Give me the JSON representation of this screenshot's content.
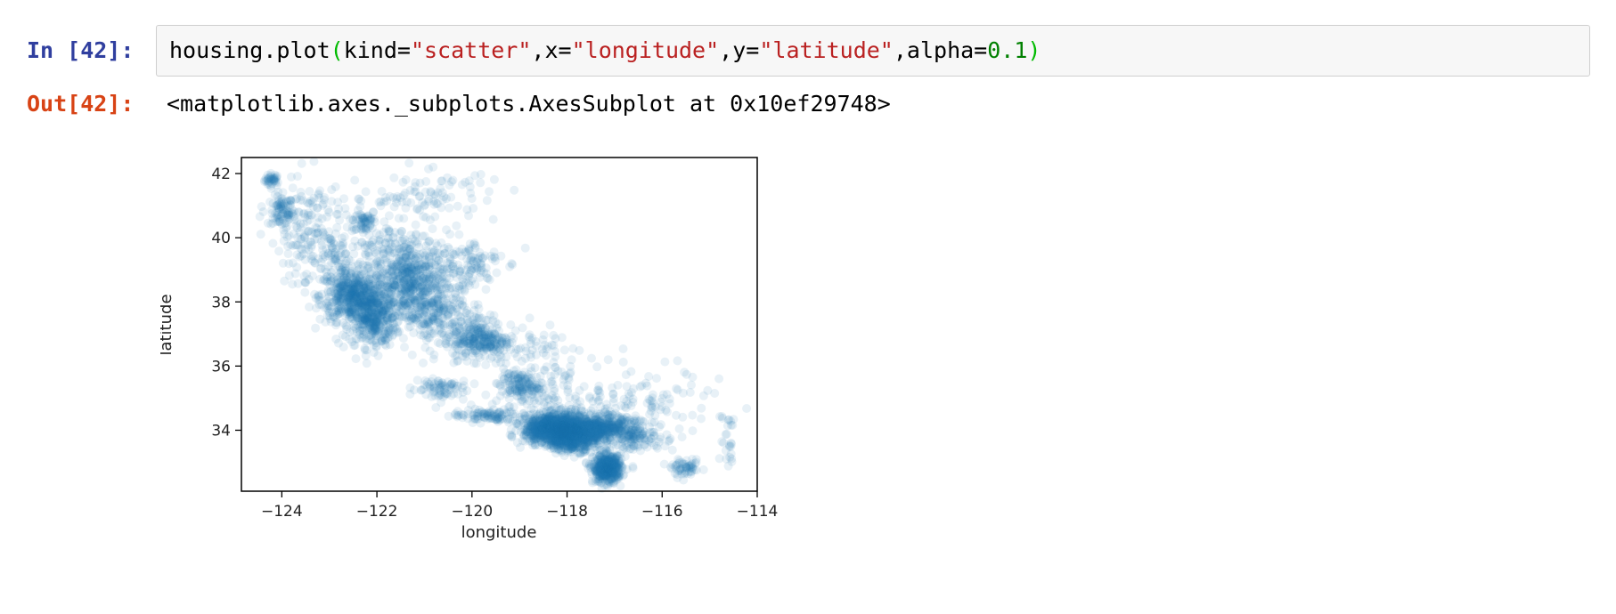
{
  "cell": {
    "in_prompt": "In [42]:",
    "out_prompt": "Out[42]:",
    "code": {
      "fn": "housing.plot",
      "open_paren": "(",
      "arg1_key": "kind=",
      "arg1_val": "\"scatter\"",
      "sep1": ",",
      "arg2_key": "x=",
      "arg2_val": "\"longitude\"",
      "sep2": ",",
      "arg3_key": "y=",
      "arg3_val": "\"latitude\"",
      "sep3": ",",
      "arg4_key": "alpha=",
      "arg4_val": "0.1",
      "close_paren": ")"
    },
    "output_text": "<matplotlib.axes._subplots.AxesSubplot at 0x10ef29748>"
  },
  "colors": {
    "point": "#1f77b4",
    "in_prompt": "#303f9f",
    "out_prompt": "#d84315"
  },
  "chart_data": {
    "type": "scatter",
    "title": "",
    "xlabel": "longitude",
    "ylabel": "latitude",
    "xlim": [
      -124.85,
      -114.0
    ],
    "ylim": [
      32.1,
      42.5
    ],
    "xticks": [
      -124,
      -122,
      -120,
      -118,
      -116,
      -114
    ],
    "yticks": [
      34,
      36,
      38,
      40,
      42
    ],
    "xtick_labels": [
      "−124",
      "−122",
      "−120",
      "−118",
      "−116",
      "−114"
    ],
    "ytick_labels": [
      "34",
      "36",
      "38",
      "40",
      "42"
    ],
    "alpha": 0.1,
    "grid": false,
    "legend": "none",
    "clusters": [
      {
        "x": -124.2,
        "y": 41.8,
        "sx": 0.08,
        "sy": 0.1,
        "n": 40
      },
      {
        "x": -124.0,
        "y": 40.8,
        "sx": 0.12,
        "sy": 0.25,
        "n": 80
      },
      {
        "x": -122.3,
        "y": 40.5,
        "sx": 0.15,
        "sy": 0.2,
        "n": 60
      },
      {
        "x": -122.5,
        "y": 38.2,
        "sx": 0.35,
        "sy": 0.4,
        "n": 500
      },
      {
        "x": -122.1,
        "y": 37.5,
        "sx": 0.25,
        "sy": 0.45,
        "n": 400
      },
      {
        "x": -121.3,
        "y": 38.6,
        "sx": 0.35,
        "sy": 0.5,
        "n": 350
      },
      {
        "x": -121.0,
        "y": 37.9,
        "sx": 0.4,
        "sy": 0.4,
        "n": 200
      },
      {
        "x": -119.8,
        "y": 36.8,
        "sx": 0.3,
        "sy": 0.3,
        "n": 250
      },
      {
        "x": -120.5,
        "y": 37.3,
        "sx": 0.5,
        "sy": 0.4,
        "n": 150
      },
      {
        "x": -119.0,
        "y": 35.4,
        "sx": 0.2,
        "sy": 0.2,
        "n": 120
      },
      {
        "x": -120.7,
        "y": 35.3,
        "sx": 0.3,
        "sy": 0.2,
        "n": 80
      },
      {
        "x": -119.7,
        "y": 34.45,
        "sx": 0.35,
        "sy": 0.1,
        "n": 100
      },
      {
        "x": -118.2,
        "y": 34.05,
        "sx": 0.35,
        "sy": 0.22,
        "n": 1200
      },
      {
        "x": -117.9,
        "y": 33.75,
        "sx": 0.25,
        "sy": 0.2,
        "n": 500
      },
      {
        "x": -117.3,
        "y": 34.05,
        "sx": 0.35,
        "sy": 0.2,
        "n": 400
      },
      {
        "x": -117.15,
        "y": 32.8,
        "sx": 0.15,
        "sy": 0.22,
        "n": 500
      },
      {
        "x": -116.5,
        "y": 33.8,
        "sx": 0.3,
        "sy": 0.2,
        "n": 120
      },
      {
        "x": -117.0,
        "y": 34.7,
        "sx": 0.6,
        "sy": 0.4,
        "n": 100
      },
      {
        "x": -115.5,
        "y": 32.8,
        "sx": 0.15,
        "sy": 0.12,
        "n": 60
      },
      {
        "x": -114.6,
        "y": 33.6,
        "sx": 0.1,
        "sy": 0.5,
        "n": 25
      },
      {
        "x": -121.5,
        "y": 39.4,
        "sx": 0.5,
        "sy": 0.5,
        "n": 200
      },
      {
        "x": -120.2,
        "y": 39.2,
        "sx": 0.4,
        "sy": 0.4,
        "n": 120
      },
      {
        "x": -122.8,
        "y": 39.5,
        "sx": 0.5,
        "sy": 0.6,
        "n": 150
      },
      {
        "x": -123.5,
        "y": 40.5,
        "sx": 0.4,
        "sy": 0.8,
        "n": 120
      },
      {
        "x": -121.0,
        "y": 41.3,
        "sx": 0.8,
        "sy": 0.4,
        "n": 100
      },
      {
        "x": -118.7,
        "y": 36.3,
        "sx": 0.6,
        "sy": 0.5,
        "n": 80
      },
      {
        "x": -116.0,
        "y": 35.0,
        "sx": 0.8,
        "sy": 0.6,
        "n": 60
      },
      {
        "x": -118.5,
        "y": 35.0,
        "sx": 0.4,
        "sy": 0.4,
        "n": 80
      }
    ]
  }
}
